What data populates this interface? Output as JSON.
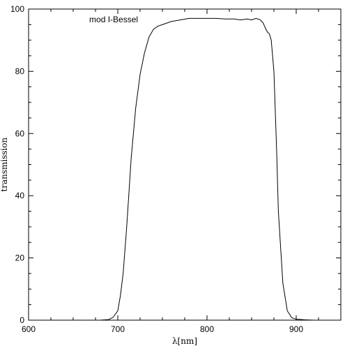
{
  "chart_data": {
    "type": "line",
    "title": "",
    "xlabel": "λ[nm]",
    "ylabel": "transmission",
    "xlim": [
      600,
      950
    ],
    "ylim": [
      0,
      100
    ],
    "x_ticks": [
      600,
      700,
      800,
      900
    ],
    "y_ticks": [
      0,
      20,
      40,
      60,
      80,
      100
    ],
    "grid": false,
    "annotation": "mod I-Bessel",
    "series": [
      {
        "name": "mod I-Bessel",
        "color": "#000000",
        "x": [
          680,
          690,
          695,
          700,
          703,
          706,
          710,
          715,
          720,
          725,
          730,
          735,
          740,
          745,
          750,
          760,
          770,
          780,
          790,
          800,
          810,
          820,
          830,
          838,
          845,
          850,
          855,
          860,
          863,
          866,
          868,
          870,
          872,
          875,
          878,
          880,
          885,
          890,
          895,
          900,
          910,
          920,
          950
        ],
        "y": [
          0,
          0.2,
          1,
          3,
          8,
          15,
          30,
          52,
          68,
          79,
          86,
          91,
          93.5,
          94.5,
          95,
          96,
          96.5,
          97,
          97,
          97,
          97,
          96.8,
          96.8,
          96.5,
          96.8,
          96.5,
          97,
          96.5,
          95.5,
          93.5,
          92.5,
          92,
          90,
          80,
          55,
          35,
          12,
          3,
          0.8,
          0.3,
          0.1,
          0,
          0
        ]
      }
    ]
  }
}
